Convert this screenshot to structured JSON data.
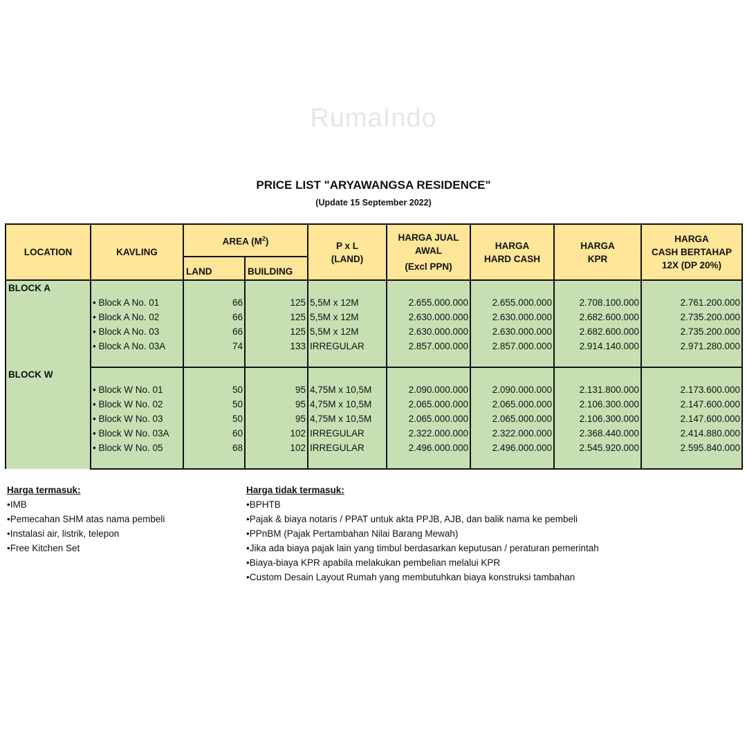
{
  "title": "PRICE LIST \"ARYAWANGSA RESIDENCE\"",
  "subtitle": "(Update 15 September 2022)",
  "watermark": "RumaIndo",
  "colors": {
    "header_fill": "#ffe699",
    "body_fill": "#c6e0b4"
  },
  "headers": {
    "location": "LOCATION",
    "kavling": "KAVLING",
    "area": "AREA (M",
    "area_sup": "2",
    "area_close": ")",
    "land": "LAND",
    "building": "BUILDING",
    "pxl": "P x L",
    "pxl_sub": "(LAND)",
    "harga_jual": "HARGA JUAL",
    "harga_jual_2": "AWAL",
    "harga_jual_3": "(Excl PPN)",
    "hard_cash": "HARGA",
    "hard_cash_2": "HARD CASH",
    "kpr": "HARGA",
    "kpr_2": "KPR",
    "bertahap": "HARGA",
    "bertahap_2": "CASH BERTAHAP",
    "bertahap_3": "12X (DP 20%)"
  },
  "blocks": [
    {
      "name": "BLOCK A",
      "rows": [
        {
          "kavling": "Block A No. 01",
          "land": "66",
          "building": "125",
          "pxl": "5,5M x 12M",
          "harga_jual": "2.655.000.000",
          "hard_cash": "2.655.000.000",
          "kpr": "2.708.100.000",
          "bertahap": "2.761.200.000"
        },
        {
          "kavling": "Block A No. 02",
          "land": "66",
          "building": "125",
          "pxl": "5,5M x 12M",
          "harga_jual": "2.630.000.000",
          "hard_cash": "2.630.000.000",
          "kpr": "2.682.600.000",
          "bertahap": "2.735.200.000"
        },
        {
          "kavling": "Block A No. 03",
          "land": "66",
          "building": "125",
          "pxl": "5,5M x 12M",
          "harga_jual": "2.630.000.000",
          "hard_cash": "2.630.000.000",
          "kpr": "2.682.600.000",
          "bertahap": "2.735.200.000"
        },
        {
          "kavling": "Block A No. 03A",
          "land": "74",
          "building": "133",
          "pxl": "IRREGULAR",
          "harga_jual": "2.857.000.000",
          "hard_cash": "2.857.000.000",
          "kpr": "2.914.140.000",
          "bertahap": "2.971.280.000"
        }
      ]
    },
    {
      "name": "BLOCK W",
      "rows": [
        {
          "kavling": "Block W No. 01",
          "land": "50",
          "building": "95",
          "pxl": "4,75M x 10,5M",
          "harga_jual": "2.090.000.000",
          "hard_cash": "2.090.000.000",
          "kpr": "2.131.800.000",
          "bertahap": "2.173.600.000"
        },
        {
          "kavling": "Block W No. 02",
          "land": "50",
          "building": "95",
          "pxl": "4,75M x 10,5M",
          "harga_jual": "2.065.000.000",
          "hard_cash": "2.065.000.000",
          "kpr": "2.106.300.000",
          "bertahap": "2.147.600.000"
        },
        {
          "kavling": "Block W No. 03",
          "land": "50",
          "building": "95",
          "pxl": "4,75M x 10,5M",
          "harga_jual": "2.065.000.000",
          "hard_cash": "2.065.000.000",
          "kpr": "2.106.300.000",
          "bertahap": "2.147.600.000"
        },
        {
          "kavling": "Block W No. 03A",
          "land": "60",
          "building": "102",
          "pxl": "IRREGULAR",
          "harga_jual": "2.322.000.000",
          "hard_cash": "2.322.000.000",
          "kpr": "2.368.440.000",
          "bertahap": "2.414.880.000"
        },
        {
          "kavling": "Block W No. 05",
          "land": "68",
          "building": "102",
          "pxl": "IRREGULAR",
          "harga_jual": "2.496.000.000",
          "hard_cash": "2.496.000.000",
          "kpr": "2.545.920.000",
          "bertahap": "2.595.840.000"
        }
      ]
    }
  ],
  "included": {
    "heading": "Harga termasuk:",
    "items": [
      "IMB",
      "Pemecahan SHM atas nama pembeli",
      "Instalasi air, listrik, telepon",
      "Free Kitchen Set"
    ]
  },
  "excluded": {
    "heading": "Harga tidak termasuk:",
    "items": [
      "BPHTB",
      "Pajak & biaya notaris / PPAT untuk akta PPJB, AJB, dan balik nama ke pembeli",
      "PPnBM (Pajak Pertambahan Nilai Barang Mewah)",
      "Jika ada biaya pajak lain yang timbul berdasarkan keputusan / peraturan pemerintah",
      "Biaya-biaya KPR apabila melakukan pembelian melalui KPR",
      "Custom Desain Layout Rumah yang membutuhkan biaya konstruksi tambahan"
    ]
  }
}
